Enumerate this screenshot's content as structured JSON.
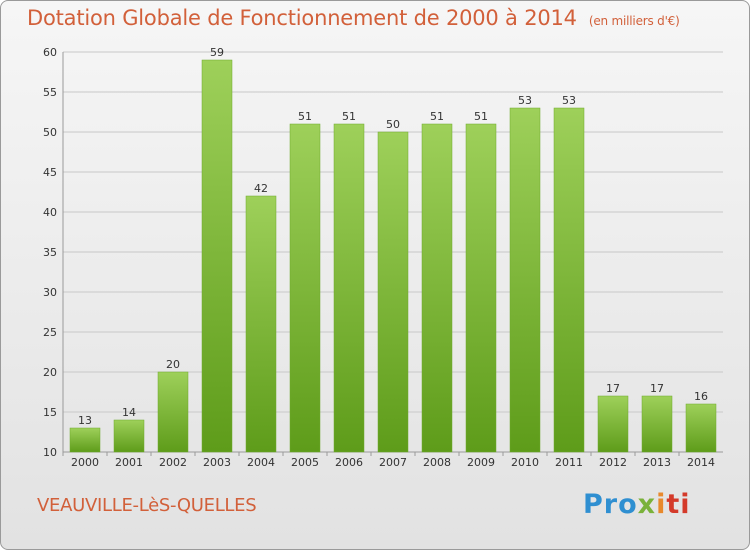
{
  "header": {
    "title": "Dotation Globale de Fonctionnement de 2000 à 2014",
    "unit": "(en milliers d'€)"
  },
  "footer": {
    "commune": "VEAUVILLE-LèS-QUELLES",
    "logo": "Proxiti"
  },
  "colors": {
    "title": "#d2603a",
    "bar_top": "#9ed05a",
    "bar_bottom": "#5e9c1a",
    "grid": "#c8c8c8"
  },
  "chart_data": {
    "type": "bar",
    "title": "Dotation Globale de Fonctionnement de 2000 à 2014",
    "xlabel": "",
    "ylabel": "",
    "categories": [
      "2000",
      "2001",
      "2002",
      "2003",
      "2004",
      "2005",
      "2006",
      "2007",
      "2008",
      "2009",
      "2010",
      "2011",
      "2012",
      "2013",
      "2014"
    ],
    "values": [
      13,
      14,
      20,
      59,
      42,
      51,
      51,
      50,
      51,
      51,
      53,
      53,
      17,
      17,
      16
    ],
    "ylim": [
      10,
      60
    ],
    "yticks": [
      10,
      15,
      20,
      25,
      30,
      35,
      40,
      45,
      50,
      55,
      60
    ],
    "grid": true
  }
}
